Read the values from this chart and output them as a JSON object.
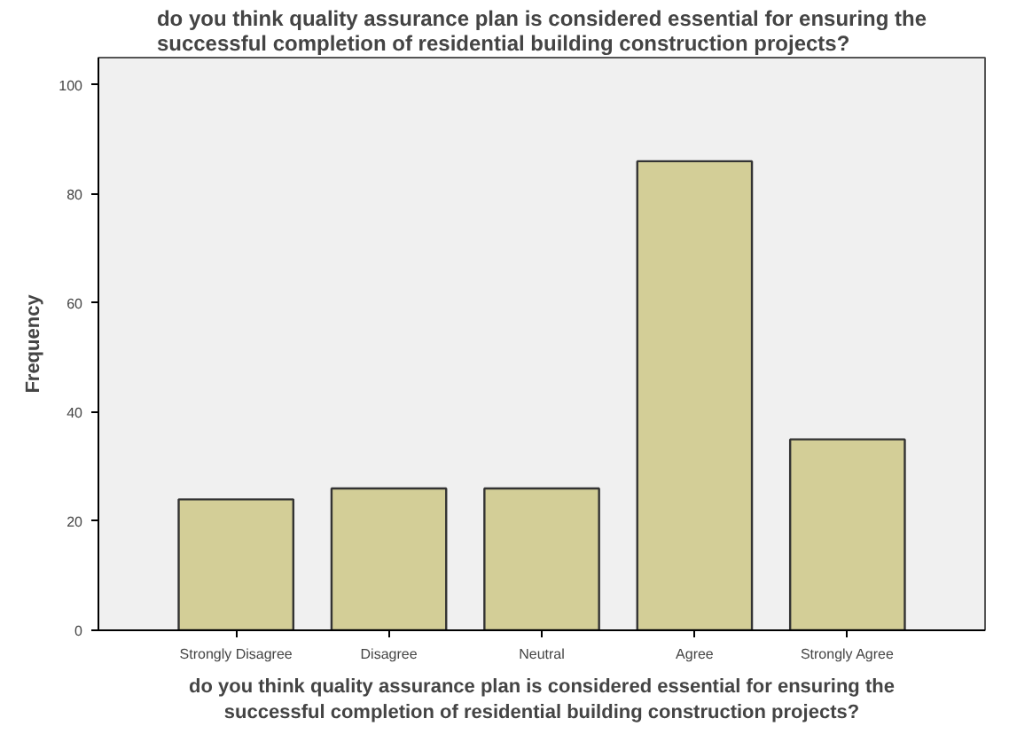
{
  "chart_data": {
    "type": "bar",
    "title": "do you think quality assurance plan is considered essential for ensuring the\nsuccessful completion of residential building construction projects?",
    "xlabel": "do you think quality assurance plan is considered essential for ensuring the\nsuccessful completion of residential building construction projects?",
    "ylabel": "Frequency",
    "categories": [
      "Strongly Disagree",
      "Disagree",
      "Neutral",
      "Agree",
      "Strongly Agree"
    ],
    "values": [
      24,
      26,
      26,
      86,
      35
    ],
    "color": "#d3ce97",
    "ylim": [
      0,
      105
    ],
    "yticks": [
      0,
      20,
      40,
      60,
      80,
      100
    ],
    "grid": false
  }
}
